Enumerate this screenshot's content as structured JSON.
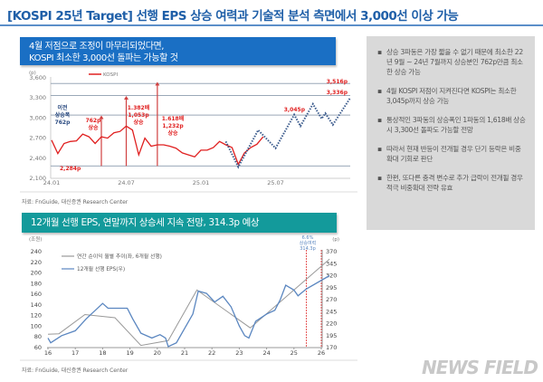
{
  "title": "[KOSPI 25년 Target] 선행 EPS 상승 여력과 기술적 분석 측면에서 3,000선 이상 가능",
  "section1": {
    "header_line1": "4월 저점으로 조정이 마무리되었다면,",
    "header_line2": "KOSPI 최소한 3,000선 돌파는 가능할 것",
    "source": "자료: FnGuide, 대신증권 Research Center"
  },
  "section2": {
    "header": "12개월 선행 EPS, 연말까지 상승세 지속 전망, 314.3p 예상",
    "source": "자료: FnGuide, 대신증권 Research Center"
  },
  "panel": {
    "bullets": [
      "상승 3파동은 가장 짧을 수 없기 때문에 최소한 22년 9월 ~ 24년 7월까지 상승분인 762p만큼 최소한 상승 가능",
      "4월 KOSPI 저점이 지켜진다면 KOSPI는 최소한 3,045p까지 상승 가능",
      "통상적인 3파동의 상승폭인 1파동의 1,618배 상승시 3,300선 돌파도 가능할 전망",
      "따라서 현재 반등이 전개될 경우 단기 등락은 비중확대 기회로 판단",
      "한편, 또다른 충격 변수로 추가 급락이 전개될 경우 적극 비중확대 전략 유효"
    ]
  },
  "watermark": "NEWS FIELD",
  "chart_data": [
    {
      "type": "line",
      "unit_label": "(p)",
      "legend": [
        "KOSPI"
      ],
      "legend_placement": "top-left",
      "ylim": [
        2100,
        3600
      ],
      "yticks": [
        2100,
        2400,
        2700,
        3000,
        3300,
        3600
      ],
      "ytick_labels": [
        "2,100",
        "2,400",
        "2,700",
        "3,000",
        "3,300",
        "3,600"
      ],
      "xlim": [
        "2024-01",
        "2026-01"
      ],
      "xticks": [
        "2024-01",
        "2024-07",
        "2025-01",
        "2025-07"
      ],
      "xtick_labels": [
        "24.01",
        "24.07",
        "25.01",
        "25.07"
      ],
      "colors": {
        "kospi": "#e02020",
        "projection": "#3a5a8c",
        "ref": "#9aa8b8"
      },
      "series": [
        {
          "name": "KOSPI",
          "x": [
            "2024-01",
            "2024-01.5",
            "2024-02",
            "2024-02.5",
            "2024-03",
            "2024-03.5",
            "2024-04",
            "2024-04.5",
            "2024-05",
            "2024-05.5",
            "2024-06",
            "2024-06.5",
            "2024-07",
            "2024-07.5",
            "2024-08",
            "2024-08.5",
            "2024-09",
            "2024-09.5",
            "2024-10",
            "2024-10.5",
            "2024-11",
            "2024-11.5",
            "2024-12",
            "2024-12.5",
            "2025-01",
            "2025-01.5",
            "2025-02",
            "2025-02.5",
            "2025-03",
            "2025-03.5",
            "2025-04",
            "2025-04.5",
            "2025-05",
            "2025-05.5",
            "2025-06"
          ],
          "y": [
            2670,
            2470,
            2620,
            2650,
            2660,
            2760,
            2720,
            2620,
            2720,
            2700,
            2780,
            2800,
            2880,
            2820,
            2450,
            2700,
            2580,
            2600,
            2600,
            2580,
            2550,
            2480,
            2450,
            2420,
            2520,
            2520,
            2560,
            2650,
            2600,
            2560,
            2310,
            2480,
            2560,
            2610,
            2720
          ]
        },
        {
          "name": "",
          "style": "dotted",
          "x": [
            "2025-03",
            "2025-04",
            "2025-05.6",
            "2025-07",
            "2025-08.5",
            "2025-09",
            "2025-10",
            "2025-10.7",
            "2025-11",
            "2025-11.6",
            "2026-01"
          ],
          "y": [
            2650,
            2270,
            2820,
            2550,
            3050,
            2880,
            3210,
            2990,
            3070,
            2900,
            3300
          ]
        }
      ],
      "reference_lines": [
        3516,
        3336,
        3045,
        2284
      ],
      "annotations": {
        "low": "2,284p",
        "t1": "3,516p",
        "t2": "3,336p",
        "t3": "3,045p",
        "prev_label": [
          "이전",
          "상승폭",
          "762p"
        ],
        "a1": [
          "762p",
          "상승"
        ],
        "a2": [
          "1.382배",
          "1,053p",
          "상승"
        ],
        "a3": [
          "1.618배",
          "1,232p",
          "상승"
        ]
      }
    },
    {
      "type": "line",
      "left_unit": "(조원)",
      "right_unit": "(p)",
      "ylim_left": [
        60,
        240
      ],
      "yticks_left": [
        60,
        80,
        100,
        120,
        140,
        160,
        180,
        200,
        220,
        240
      ],
      "ylim_right": [
        170,
        370
      ],
      "yticks_right": [
        170,
        195,
        220,
        245,
        270,
        295,
        320,
        345,
        370
      ],
      "xlim": [
        16,
        26.3
      ],
      "xticks": [
        16,
        17,
        18,
        19,
        20,
        21,
        22,
        23,
        24,
        25,
        26
      ],
      "legend_placement": "top-left",
      "colors": {
        "profit": "#999999",
        "eps": "#5a86c0",
        "marker": "#e03030"
      },
      "series": [
        {
          "name": "연간 순이익 월별 추이(좌, 6개월 선행)",
          "axis": "left",
          "x": [
            16,
            16.4,
            17.35,
            18.45,
            19.4,
            20.4,
            21.45,
            23.4,
            26.3
          ],
          "y": [
            85,
            86,
            122,
            116,
            64,
            73,
            168,
            97,
            226
          ]
        },
        {
          "name": "12개월 선행 EPS(우)",
          "axis": "right",
          "x": [
            16,
            16.1,
            16.5,
            17,
            17.4,
            18,
            18.2,
            18.9,
            19.1,
            19.4,
            19.8,
            20.1,
            20.3,
            20.4,
            20.7,
            21,
            21.3,
            21.5,
            21.8,
            22.1,
            22.4,
            22.7,
            23,
            23.2,
            23.35,
            23.6,
            24,
            24.3,
            24.5,
            24.7,
            25,
            25.15,
            25.45,
            26.3
          ],
          "y": [
            190,
            180,
            195,
            205,
            230,
            262,
            252,
            252,
            230,
            200,
            190,
            197,
            190,
            172,
            180,
            210,
            240,
            288,
            283,
            265,
            277,
            255,
            215,
            195,
            190,
            225,
            240,
            248,
            270,
            300,
            290,
            278,
            292,
            320
          ]
        }
      ],
      "vlines": [
        25.45,
        26.0
      ],
      "annotation": [
        "6.6%",
        "상승여력",
        "314.3p"
      ]
    }
  ]
}
